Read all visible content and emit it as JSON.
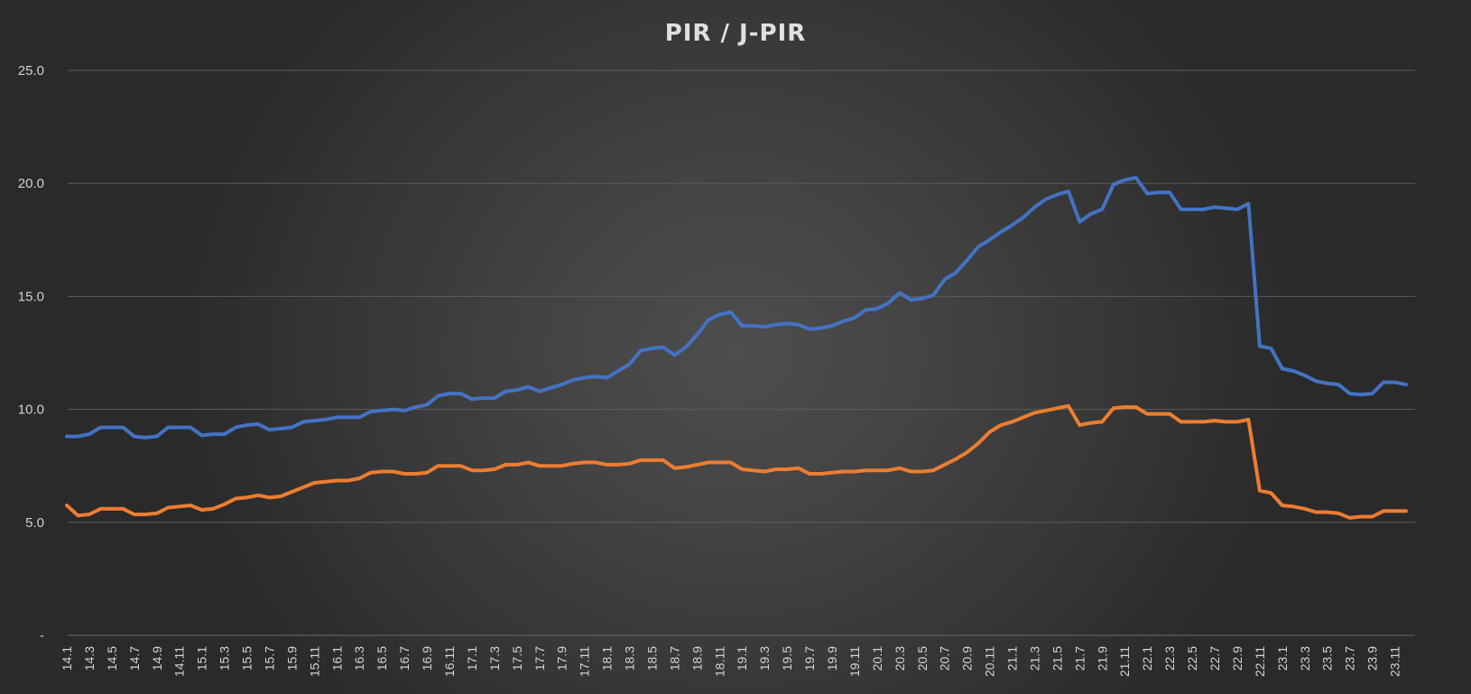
{
  "chart_data": {
    "type": "line",
    "title": "PIR / J-PIR",
    "xlabel": "",
    "ylabel": "",
    "ylim": [
      0,
      25
    ],
    "y_ticks": [
      {
        "value": 0,
        "label": "-"
      },
      {
        "value": 5,
        "label": "5.0"
      },
      {
        "value": 10,
        "label": "10.0"
      },
      {
        "value": 15,
        "label": "15.0"
      },
      {
        "value": 20,
        "label": "20.0"
      },
      {
        "value": 25,
        "label": "25.0"
      }
    ],
    "grid": true,
    "legend": "none",
    "x_tick_labels": [
      "14.1",
      "14.3",
      "14.5",
      "14.7",
      "14.9",
      "14.11",
      "15.1",
      "15.3",
      "15.5",
      "15.7",
      "15.9",
      "15.11",
      "16.1",
      "16.3",
      "16.5",
      "16.7",
      "16.9",
      "16.11",
      "17.1",
      "17.3",
      "17.5",
      "17.7",
      "17.9",
      "17.11",
      "18.1",
      "18.3",
      "18.5",
      "18.7",
      "18.9",
      "18.11",
      "19.1",
      "19.3",
      "19.5",
      "19.7",
      "19.9",
      "19.11",
      "20.1",
      "20.3",
      "20.5",
      "20.7",
      "20.9",
      "20.11",
      "21.1",
      "21.3",
      "21.5",
      "21.7",
      "21.9",
      "21.11",
      "22.1",
      "22.3",
      "22.5",
      "22.7",
      "22.9",
      "22.11",
      "23.1",
      "23.3",
      "23.5",
      "23.7",
      "23.9",
      "23.11"
    ],
    "categories": [
      "14.1",
      "14.2",
      "14.3",
      "14.4",
      "14.5",
      "14.6",
      "14.7",
      "14.8",
      "14.9",
      "14.10",
      "14.11",
      "14.12",
      "15.1",
      "15.2",
      "15.3",
      "15.4",
      "15.5",
      "15.6",
      "15.7",
      "15.8",
      "15.9",
      "15.10",
      "15.11",
      "15.12",
      "16.1",
      "16.2",
      "16.3",
      "16.4",
      "16.5",
      "16.6",
      "16.7",
      "16.8",
      "16.9",
      "16.10",
      "16.11",
      "16.12",
      "17.1",
      "17.2",
      "17.3",
      "17.4",
      "17.5",
      "17.6",
      "17.7",
      "17.8",
      "17.9",
      "17.10",
      "17.11",
      "17.12",
      "18.1",
      "18.2",
      "18.3",
      "18.4",
      "18.5",
      "18.6",
      "18.7",
      "18.8",
      "18.9",
      "18.10",
      "18.11",
      "18.12",
      "19.1",
      "19.2",
      "19.3",
      "19.4",
      "19.5",
      "19.6",
      "19.7",
      "19.8",
      "19.9",
      "19.10",
      "19.11",
      "19.12",
      "20.1",
      "20.2",
      "20.3",
      "20.4",
      "20.5",
      "20.6",
      "20.7",
      "20.8",
      "20.9",
      "20.10",
      "20.11",
      "20.12",
      "21.1",
      "21.2",
      "21.3",
      "21.4",
      "21.5",
      "21.6",
      "21.7",
      "21.8",
      "21.9",
      "21.10",
      "21.11",
      "21.12",
      "22.1",
      "22.2",
      "22.3",
      "22.4",
      "22.5",
      "22.6",
      "22.7",
      "22.8",
      "22.9",
      "22.10",
      "22.11",
      "22.12",
      "23.1",
      "23.2",
      "23.3",
      "23.4",
      "23.5",
      "23.6",
      "23.7",
      "23.8",
      "23.9",
      "23.10",
      "23.11",
      "23.12"
    ],
    "series": [
      {
        "color": "#4472c4",
        "values": [
          8.8,
          8.8,
          8.9,
          9.2,
          9.2,
          9.2,
          8.8,
          8.75,
          8.8,
          9.2,
          9.2,
          9.2,
          8.85,
          8.9,
          8.9,
          9.2,
          9.3,
          9.35,
          9.1,
          9.15,
          9.2,
          9.45,
          9.5,
          9.55,
          9.65,
          9.65,
          9.65,
          9.9,
          9.95,
          10.0,
          9.95,
          10.1,
          10.2,
          10.6,
          10.7,
          10.7,
          10.45,
          10.5,
          10.5,
          10.8,
          10.85,
          11.0,
          10.8,
          10.95,
          11.1,
          11.3,
          11.4,
          11.45,
          11.4,
          11.7,
          12.0,
          12.6,
          12.7,
          12.75,
          12.4,
          12.75,
          13.3,
          13.95,
          14.2,
          14.3,
          13.7,
          13.7,
          13.65,
          13.75,
          13.8,
          13.75,
          13.55,
          13.6,
          13.7,
          13.9,
          14.05,
          14.4,
          14.45,
          14.7,
          15.15,
          14.85,
          14.9,
          15.05,
          15.75,
          16.05,
          16.6,
          17.2,
          17.5,
          17.85,
          18.15,
          18.5,
          18.95,
          19.3,
          19.5,
          19.65,
          18.3,
          18.65,
          18.85,
          19.95,
          20.15,
          20.25,
          19.55,
          19.6,
          19.6,
          18.85,
          18.85,
          18.85,
          18.95,
          18.9,
          18.85,
          19.1,
          12.8,
          12.7,
          11.8,
          11.7,
          11.5,
          11.25,
          11.15,
          11.1,
          10.7,
          10.65,
          10.7,
          11.2,
          11.2,
          11.1
        ]
      },
      {
        "color": "#ed7d31",
        "values": [
          5.75,
          5.3,
          5.35,
          5.6,
          5.6,
          5.6,
          5.35,
          5.35,
          5.4,
          5.65,
          5.7,
          5.75,
          5.55,
          5.6,
          5.8,
          6.05,
          6.1,
          6.2,
          6.1,
          6.15,
          6.35,
          6.55,
          6.75,
          6.8,
          6.85,
          6.85,
          6.95,
          7.2,
          7.25,
          7.25,
          7.15,
          7.15,
          7.2,
          7.5,
          7.5,
          7.5,
          7.3,
          7.3,
          7.35,
          7.55,
          7.55,
          7.65,
          7.5,
          7.5,
          7.5,
          7.6,
          7.65,
          7.65,
          7.55,
          7.55,
          7.6,
          7.75,
          7.75,
          7.75,
          7.4,
          7.45,
          7.55,
          7.65,
          7.65,
          7.65,
          7.35,
          7.3,
          7.25,
          7.35,
          7.35,
          7.4,
          7.15,
          7.15,
          7.2,
          7.25,
          7.25,
          7.3,
          7.3,
          7.3,
          7.4,
          7.25,
          7.25,
          7.3,
          7.55,
          7.8,
          8.1,
          8.5,
          9.0,
          9.3,
          9.45,
          9.65,
          9.85,
          9.95,
          10.05,
          10.15,
          9.3,
          9.4,
          9.45,
          10.05,
          10.1,
          10.1,
          9.8,
          9.8,
          9.8,
          9.45,
          9.45,
          9.45,
          9.5,
          9.45,
          9.45,
          9.55,
          6.4,
          6.3,
          5.75,
          5.7,
          5.6,
          5.45,
          5.45,
          5.4,
          5.2,
          5.25,
          5.25,
          5.5,
          5.5,
          5.5
        ]
      }
    ]
  }
}
